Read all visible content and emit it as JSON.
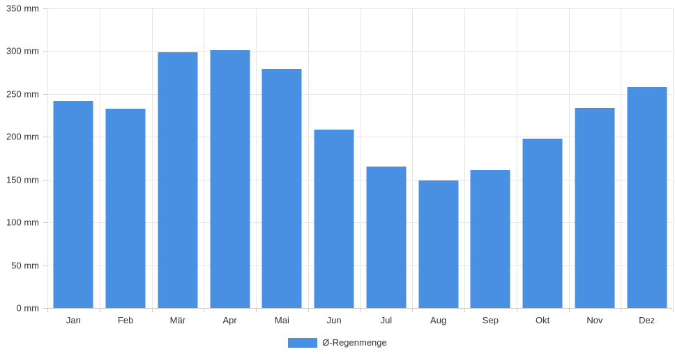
{
  "chart_data": {
    "type": "bar",
    "title": "",
    "categories": [
      "Jan",
      "Feb",
      "Mär",
      "Apr",
      "Mai",
      "Jun",
      "Jul",
      "Aug",
      "Sep",
      "Okt",
      "Nov",
      "Dez"
    ],
    "series": [
      {
        "name": "Ø-Regenmenge",
        "values": [
          242,
          233,
          299,
          301,
          279,
          208,
          165,
          149,
          161,
          198,
          234,
          258
        ]
      }
    ],
    "y_ticks": [
      0,
      50,
      100,
      150,
      200,
      250,
      300,
      350
    ],
    "y_tick_suffix": " mm",
    "ylim": [
      0,
      350
    ],
    "grid": true,
    "legend_position": "bottom",
    "legend": "Ø-Regenmenge"
  },
  "colors": {
    "bar": "#4a90e2",
    "grid": "#e6e6e6",
    "axis": "#cccccc",
    "text": "#333333",
    "background": "#ffffff"
  }
}
